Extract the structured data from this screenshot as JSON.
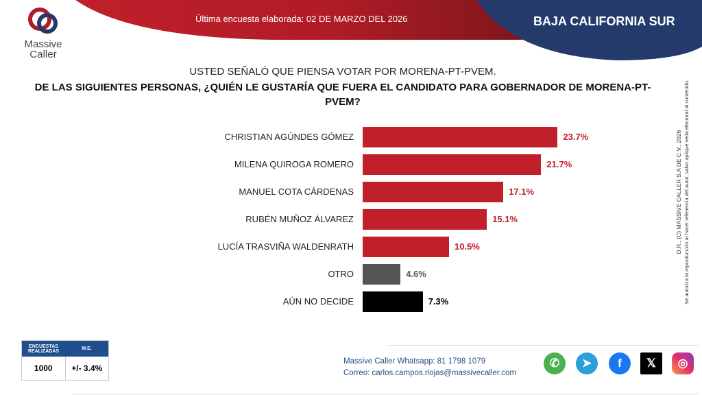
{
  "header": {
    "date_text": "Última encuesta elaborada: 02 DE MARZO DEL 2026",
    "state": "BAJA CALIFORNIA SUR",
    "logo_text": [
      "Massive",
      "Caller"
    ]
  },
  "question": {
    "line1": "USTED SEÑALÓ QUE PIENSA VOTAR POR MORENA-PT-PVEM.",
    "line2": "DE LAS SIGUIENTES PERSONAS, ¿QUIÉN LE GUSTARÍA QUE FUERA EL CANDIDATO PARA GOBERNADOR DE MORENA-PT-PVEM?"
  },
  "chart_data": {
    "type": "bar",
    "orientation": "horizontal",
    "categories": [
      "CHRISTIAN AGÚNDES GÓMEZ",
      "MILENA QUIROGA ROMERO",
      "MANUEL COTA CÁRDENAS",
      "RUBÉN MUÑOZ ÁLVAREZ",
      "LUCÍA TRASVIÑA WALDENRATH",
      "OTRO",
      "AÚN NO DECIDE"
    ],
    "values": [
      23.7,
      21.7,
      17.1,
      15.1,
      10.5,
      4.6,
      7.3
    ],
    "labels": [
      "23.7%",
      "21.7%",
      "17.1%",
      "15.1%",
      "10.5%",
      "4.6%",
      "7.3%"
    ],
    "colors": [
      "#c0202a",
      "#c0202a",
      "#c0202a",
      "#c0202a",
      "#c0202a",
      "#555555",
      "#000000"
    ],
    "label_colors": [
      "#c0202a",
      "#c0202a",
      "#c0202a",
      "#c0202a",
      "#c0202a",
      "#555555",
      "#000000"
    ]
  },
  "side_note": {
    "line1": "D.R., (C) MASSIVE CALLER S.A DE C.V., 2026",
    "line2": "Se autoriza la reproducción al hacer referencia del autor, salvo aplique veda electoral al contenido."
  },
  "table": {
    "h1": "ENCUESTAS REALIZADAS",
    "h2": "M.E.",
    "v1": "1000",
    "v2": "+/- 3.4%"
  },
  "contact": {
    "whatsapp": "Massive Caller Whatsapp: 81 1798 1079",
    "email": "Correo: carlos.campos.riojas@massivecaller.com"
  },
  "social_icons": [
    "whatsapp-icon",
    "telegram-icon",
    "facebook-icon",
    "x-icon",
    "instagram-icon"
  ]
}
